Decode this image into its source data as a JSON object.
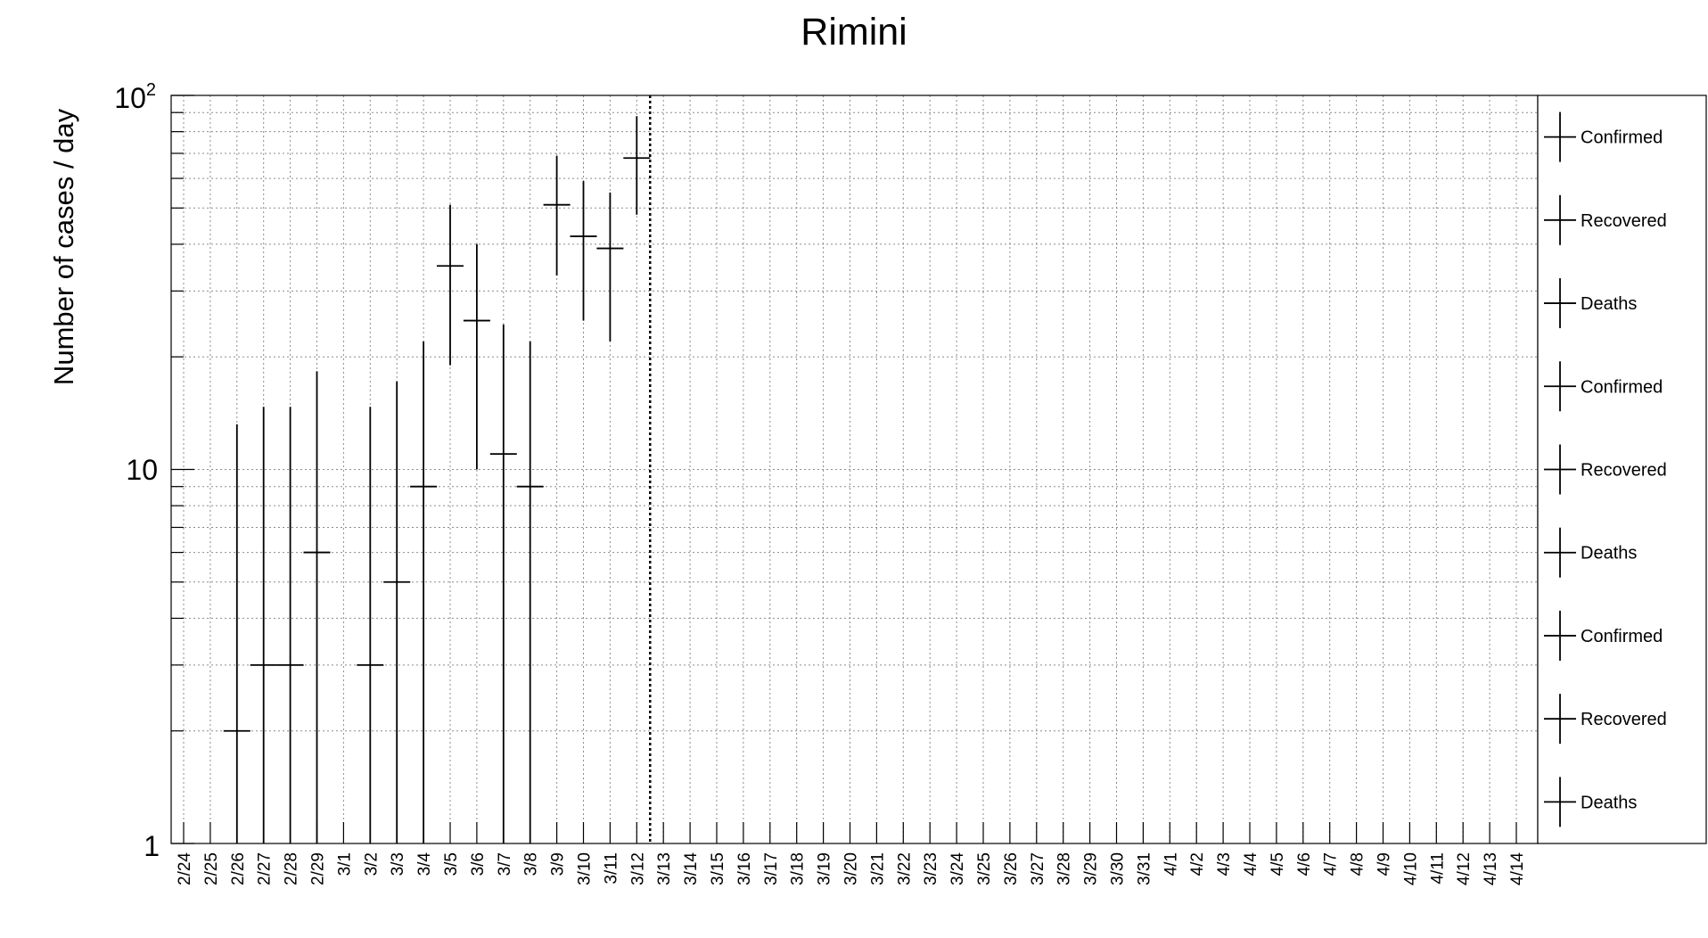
{
  "chart_data": {
    "type": "scatter",
    "title": "Rimini",
    "ylabel": "Number of cases / day",
    "xlabel": "",
    "yscale": "log",
    "ylim": [
      1,
      100
    ],
    "grid": true,
    "y_tick_labels": {
      "major_1": "1",
      "major_10": "10",
      "major_100_base": "10",
      "major_100_exp": "2"
    },
    "categories": [
      "2/24",
      "2/25",
      "2/26",
      "2/27",
      "2/28",
      "2/29",
      "3/1",
      "3/2",
      "3/3",
      "3/4",
      "3/5",
      "3/6",
      "3/7",
      "3/8",
      "3/9",
      "3/10",
      "3/11",
      "3/12",
      "3/13",
      "3/14",
      "3/15",
      "3/16",
      "3/17",
      "3/18",
      "3/19",
      "3/20",
      "3/21",
      "3/22",
      "3/23",
      "3/24",
      "3/25",
      "3/26",
      "3/27",
      "3/28",
      "3/29",
      "3/30",
      "3/31",
      "4/1",
      "4/2",
      "4/3",
      "4/4",
      "4/5",
      "4/6",
      "4/7",
      "4/8",
      "4/9",
      "4/10",
      "4/11",
      "4/12",
      "4/13",
      "4/14"
    ],
    "vertical_marker": "3/12",
    "series": [
      {
        "name": "Confirmed",
        "color": "#000000",
        "points": [
          {
            "x": "2/26",
            "y": 2,
            "err_low": 1,
            "err_high": 13.2
          },
          {
            "x": "2/27",
            "y": 3,
            "err_low": 1,
            "err_high": 14.7
          },
          {
            "x": "2/28",
            "y": 3,
            "err_low": 1,
            "err_high": 14.7
          },
          {
            "x": "2/29",
            "y": 6,
            "err_low": 1,
            "err_high": 18.3
          },
          {
            "x": "3/2",
            "y": 3,
            "err_low": 1,
            "err_high": 14.7
          },
          {
            "x": "3/3",
            "y": 5,
            "err_low": 1,
            "err_high": 17.2
          },
          {
            "x": "3/4",
            "y": 9,
            "err_low": 1,
            "err_high": 22
          },
          {
            "x": "3/5",
            "y": 35,
            "err_low": 19,
            "err_high": 51
          },
          {
            "x": "3/6",
            "y": 25,
            "err_low": 10,
            "err_high": 40
          },
          {
            "x": "3/7",
            "y": 11,
            "err_low": 1,
            "err_high": 24.4
          },
          {
            "x": "3/8",
            "y": 9,
            "err_low": 1,
            "err_high": 22
          },
          {
            "x": "3/9",
            "y": 51,
            "err_low": 33,
            "err_high": 69
          },
          {
            "x": "3/10",
            "y": 42,
            "err_low": 25,
            "err_high": 59
          },
          {
            "x": "3/11",
            "y": 39,
            "err_low": 22,
            "err_high": 55
          },
          {
            "x": "3/12",
            "y": 68,
            "err_low": 48,
            "err_high": 88
          }
        ]
      }
    ],
    "legend": {
      "placement": "right",
      "entries": [
        "Confirmed",
        "Recovered",
        "Deaths",
        "Confirmed",
        "Recovered",
        "Deaths",
        "Confirmed",
        "Recovered",
        "Deaths"
      ]
    }
  }
}
